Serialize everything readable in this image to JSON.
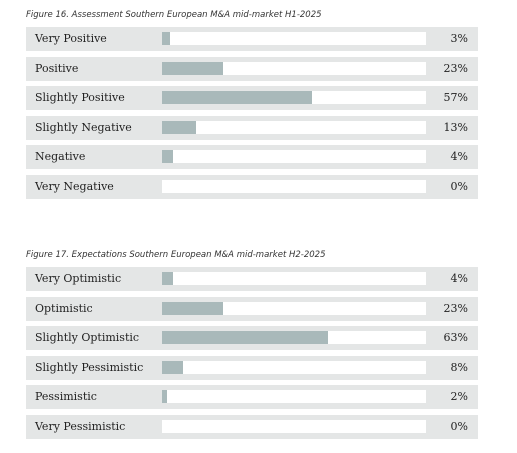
{
  "colors": {
    "row_background": "#e4e6e6",
    "track": "#ffffff",
    "bar": "#a9b9ba"
  },
  "chart_data": [
    {
      "type": "bar",
      "orientation": "horizontal",
      "title": "Figure 16. Assessment Southern European M&A mid-market H1-2025",
      "categories": [
        "Very Positive",
        "Positive",
        "Slightly Positive",
        "Slightly Negative",
        "Negative",
        "Very Negative"
      ],
      "values": [
        3,
        23,
        57,
        13,
        4,
        0
      ],
      "value_labels": [
        "3%",
        "23%",
        "57%",
        "13%",
        "4%",
        "0%"
      ],
      "xlim": [
        0,
        100
      ],
      "grid": false
    },
    {
      "type": "bar",
      "orientation": "horizontal",
      "title": "Figure 17. Expectations Southern European M&A mid-market H2-2025",
      "categories": [
        "Very Optimistic",
        "Optimistic",
        "Slightly Optimistic",
        "Slightly Pessimistic",
        "Pessimistic",
        "Very Pessimistic"
      ],
      "values": [
        4,
        23,
        63,
        8,
        2,
        0
      ],
      "value_labels": [
        "4%",
        "23%",
        "63%",
        "8%",
        "2%",
        "0%"
      ],
      "xlim": [
        0,
        100
      ],
      "grid": false
    }
  ]
}
